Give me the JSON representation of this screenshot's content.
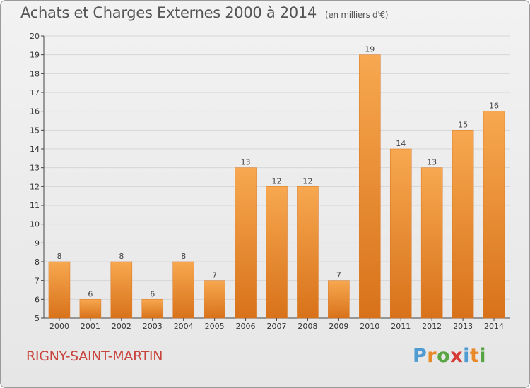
{
  "title": "Achats et Charges Externes 2000 à 2014",
  "unit": "(en milliers d'€)",
  "commune": "RIGNY-SAINT-MARTIN",
  "brand": [
    "P",
    "r",
    "o",
    "x",
    "i",
    "t",
    "i"
  ],
  "colors": {
    "bar_light": "#f6a54e",
    "bar_dark": "#d9741c",
    "title": "#555555",
    "commune": "#c8433b"
  },
  "chart_data": {
    "type": "bar",
    "title": "Achats et Charges Externes 2000 à 2014",
    "subtitle": "(en milliers d'€)",
    "xlabel": "",
    "ylabel": "",
    "ylim": [
      5,
      20
    ],
    "yticks": [
      5,
      6,
      7,
      8,
      9,
      10,
      11,
      12,
      13,
      14,
      15,
      16,
      17,
      18,
      19,
      20
    ],
    "grid": true,
    "categories": [
      "2000",
      "2001",
      "2002",
      "2003",
      "2004",
      "2005",
      "2006",
      "2007",
      "2008",
      "2009",
      "2010",
      "2011",
      "2012",
      "2013",
      "2014"
    ],
    "values": [
      8,
      6,
      8,
      6,
      8,
      7,
      13,
      12,
      12,
      7,
      19,
      14,
      13,
      15,
      16
    ]
  }
}
